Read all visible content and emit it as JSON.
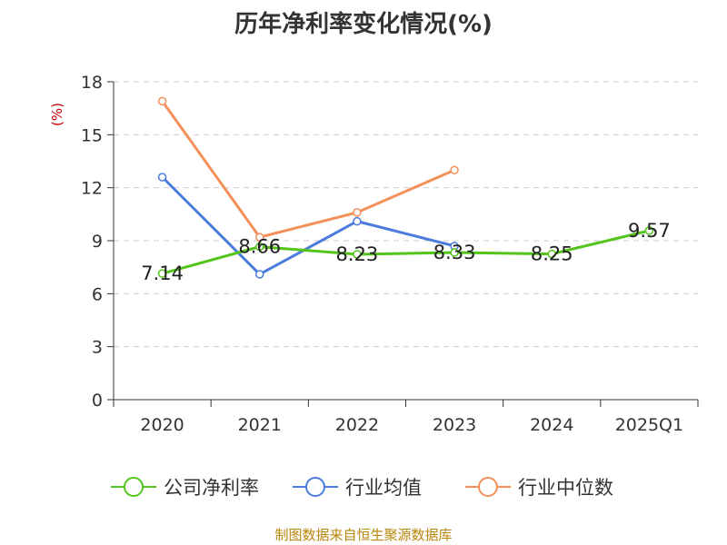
{
  "title": "历年净利率变化情况(%)",
  "source": "制图数据来自恒生聚源数据库",
  "chart_data": {
    "type": "line",
    "title": "历年净利率变化情况(%)",
    "ylabel": "(%)",
    "xlabel": "",
    "categories": [
      "2020",
      "2021",
      "2022",
      "2023",
      "2024",
      "2025Q1"
    ],
    "ylim": [
      0,
      18
    ],
    "yticks": [
      0,
      3,
      6,
      9,
      12,
      15,
      18
    ],
    "grid": true,
    "legend_position": "bottom",
    "series": [
      {
        "name": "公司净利率",
        "color": "#52c41a",
        "values": [
          7.14,
          8.66,
          8.23,
          8.33,
          8.25,
          9.57
        ],
        "labels": [
          "7.14",
          "8.66",
          "8.23",
          "8.33",
          "8.25",
          "9.57"
        ]
      },
      {
        "name": "行业均值",
        "color": "#4b7bdc",
        "values": [
          12.6,
          7.1,
          10.1,
          8.7,
          null,
          null
        ]
      },
      {
        "name": "行业中位数",
        "color": "#f4905a",
        "values": [
          16.9,
          9.2,
          10.6,
          13.0,
          null,
          null
        ]
      }
    ]
  },
  "colors": {
    "axis": "#333333",
    "grid": "#cccccc",
    "ylabel": "#cc0000"
  }
}
